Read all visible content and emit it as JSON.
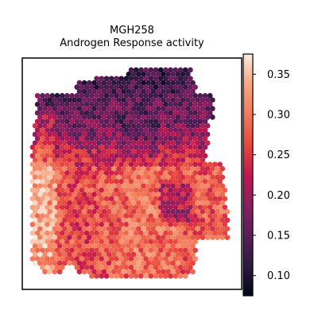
{
  "chart_data": {
    "type": "scatter",
    "title": "MGH258",
    "subtitle": "Androgen Response activity",
    "xlabel": "",
    "ylabel": "",
    "axes_ticks_visible": false,
    "marker": "hexagon",
    "colormap": "rocket",
    "colorbar": {
      "vmin": 0.075,
      "vmax": 0.375,
      "ticks": [
        0.1,
        0.15,
        0.2,
        0.25,
        0.3,
        0.35
      ],
      "tick_labels": [
        "0.10",
        "0.15",
        "0.20",
        "0.25",
        "0.30",
        "0.35"
      ]
    },
    "value_pattern": [
      {
        "region": "upper tissue (top ~third)",
        "typical_value": 0.14
      },
      {
        "region": "middle band",
        "typical_value": 0.22
      },
      {
        "region": "lower-left tissue",
        "typical_value": 0.31
      },
      {
        "region": "right-side protrusion",
        "typical_value": 0.3
      }
    ]
  }
}
